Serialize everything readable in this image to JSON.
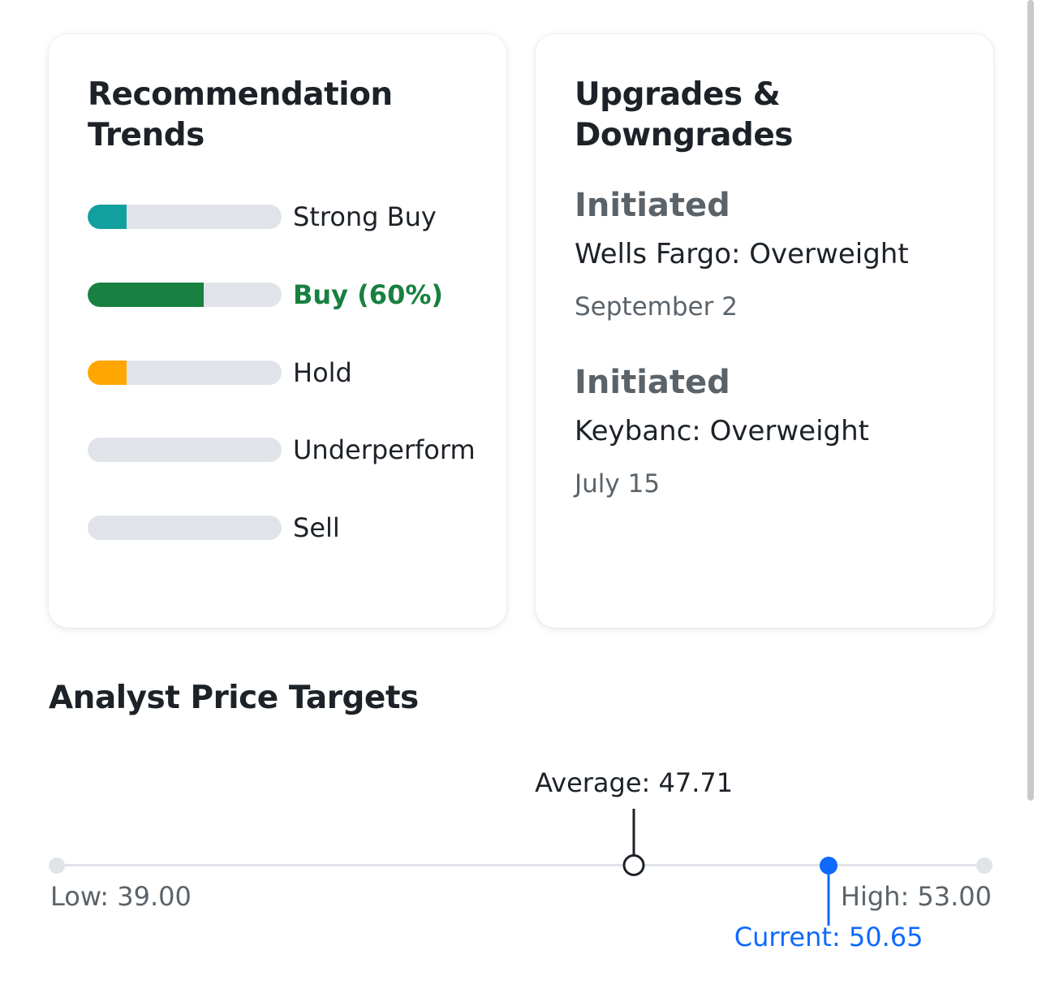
{
  "recommendation_trends": {
    "title_line1": "Recommendation",
    "title_line2": "Trends",
    "rows": [
      {
        "label": "Strong Buy",
        "fraction": 0.2,
        "color": "#12a09f",
        "active": false
      },
      {
        "label": "Buy (60%)",
        "fraction": 0.6,
        "color": "#188040",
        "active": true
      },
      {
        "label": "Hold",
        "fraction": 0.2,
        "color": "#ffa700",
        "active": false
      },
      {
        "label": "Underperform",
        "fraction": 0.0,
        "color": "#eb0f29",
        "active": false
      },
      {
        "label": "Sell",
        "fraction": 0.0,
        "color": "#c3001e",
        "active": false
      }
    ]
  },
  "upgrades_downgrades": {
    "title_line1": "Upgrades &",
    "title_line2": "Downgrades",
    "items": [
      {
        "action": "Initiated",
        "firm": "Wells Fargo: Overweight",
        "date": "September 2"
      },
      {
        "action": "Initiated",
        "firm": "Keybanc: Overweight",
        "date": "July 15"
      }
    ]
  },
  "analyst_price_targets": {
    "title": "Analyst Price Targets",
    "low": 39.0,
    "average": 47.71,
    "current": 50.65,
    "high": 53.0,
    "low_label": "Low: 39.00",
    "average_label": "Average: 47.71",
    "current_label": "Current: 50.65",
    "high_label": "High: 53.00",
    "colors": {
      "track": "#e0e4e9",
      "average": "#1d2228",
      "current": "#0f69ff"
    }
  }
}
